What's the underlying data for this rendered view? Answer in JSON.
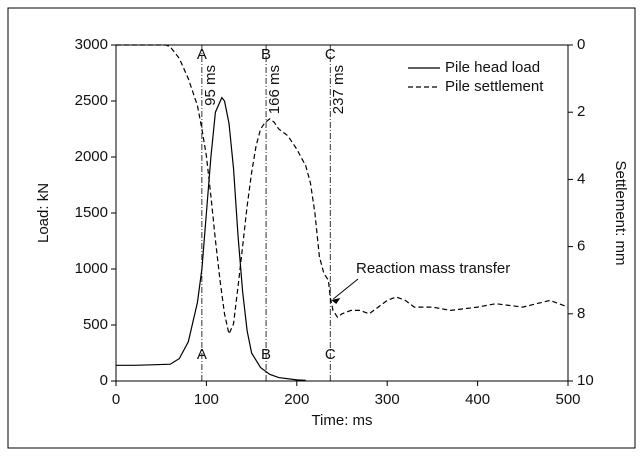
{
  "chart_data": {
    "type": "line",
    "xlabel": "Time: ms",
    "ylabel": "Load: kN",
    "y2label": "Settlement: mm",
    "xlim": [
      0,
      500
    ],
    "xticks": [
      0,
      100,
      200,
      300,
      400,
      500
    ],
    "ylim": [
      0,
      3000
    ],
    "yticks": [
      0,
      500,
      1000,
      1500,
      2000,
      2500,
      3000
    ],
    "y2lim": [
      10,
      0
    ],
    "y2ticks": [
      0,
      2,
      4,
      6,
      8,
      10
    ],
    "legend": "top-right",
    "series": [
      {
        "name": "Pile head load",
        "color": "#000000",
        "dash": "solid",
        "x": [
          0,
          20,
          40,
          60,
          70,
          80,
          90,
          95,
          100,
          105,
          110,
          117,
          120,
          125,
          130,
          135,
          140,
          145,
          150,
          160,
          170,
          180,
          200,
          210
        ],
        "values": [
          140,
          140,
          145,
          150,
          200,
          350,
          700,
          1000,
          1500,
          2000,
          2400,
          2530,
          2500,
          2300,
          1900,
          1300,
          800,
          450,
          250,
          120,
          60,
          30,
          10,
          5
        ]
      },
      {
        "name": "Pile settlement",
        "color": "#000000",
        "dash": "dashed",
        "axis": "y2",
        "x": [
          0,
          55,
          60,
          70,
          80,
          90,
          95,
          100,
          105,
          110,
          115,
          120,
          125,
          130,
          135,
          140,
          145,
          150,
          155,
          160,
          165,
          170,
          175,
          180,
          190,
          200,
          210,
          215,
          220,
          225,
          230,
          235,
          237,
          240,
          245,
          250,
          260,
          270,
          280,
          290,
          300,
          310,
          320,
          330,
          350,
          370,
          400,
          420,
          450,
          480,
          500
        ],
        "values": [
          0,
          0,
          0.05,
          0.4,
          1.0,
          1.8,
          2.5,
          3.3,
          4.5,
          5.8,
          7.0,
          8.0,
          8.6,
          8.3,
          7.2,
          6.0,
          4.8,
          3.8,
          3.0,
          2.5,
          2.3,
          2.2,
          2.3,
          2.5,
          2.7,
          3.1,
          3.6,
          4.1,
          5.0,
          6.3,
          6.8,
          7.0,
          7.5,
          7.9,
          8.1,
          8.0,
          7.9,
          7.9,
          8.0,
          7.8,
          7.6,
          7.5,
          7.6,
          7.8,
          7.8,
          7.9,
          7.8,
          7.7,
          7.8,
          7.6,
          7.8
        ]
      }
    ],
    "markers": [
      {
        "value": 95,
        "label": "95 ms",
        "letter": "A"
      },
      {
        "value": 166,
        "label": "166 ms",
        "letter": "B"
      },
      {
        "value": 237,
        "label": "237 ms",
        "letter": "C"
      }
    ],
    "annotation": {
      "text": "Reaction mass transfer",
      "x": 237,
      "y": 7.5,
      "axis": "y2"
    }
  }
}
